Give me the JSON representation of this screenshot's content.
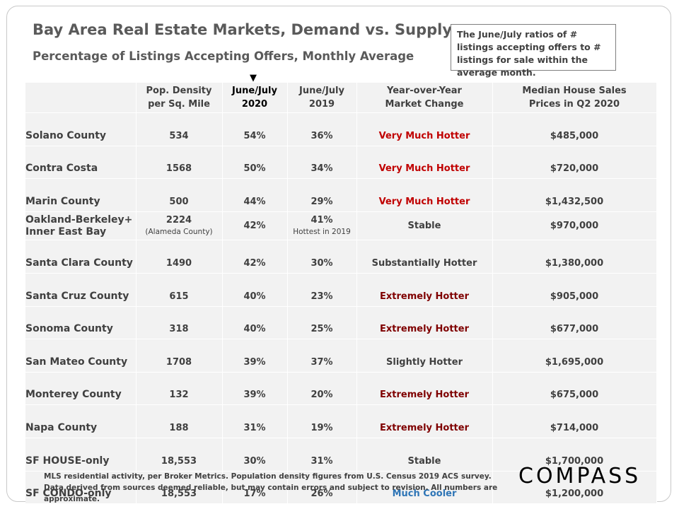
{
  "title": "Bay Area Real Estate Markets, Demand vs. Supply",
  "subtitle": "Percentage of Listings Accepting Offers, Monthly Average",
  "note": "The June/July ratios of # listings accepting offers to # listings for sale within the average month.",
  "arrow_glyph": "▼",
  "footer": "MLS residential activity, per Broker Metrics. Population density figures from U.S. Census 2019 ACS survey. Data derived from sources deemed reliable, but may contain errors and subject to revision. All numbers are approximate.",
  "logo": "COMPASS",
  "colors": {
    "very_much_hotter": "#c00000",
    "extremely_hotter": "#7f0000",
    "much_cooler": "#2e75b6",
    "neutral": "#404040"
  },
  "chart_data": {
    "type": "table",
    "columns": [
      {
        "line1": "",
        "line2": ""
      },
      {
        "line1": "Pop. Density",
        "line2": "per Sq. Mile"
      },
      {
        "line1": "June/July",
        "line2": "2020"
      },
      {
        "line1": "June/July",
        "line2": "2019"
      },
      {
        "line1": "Year-over-Year",
        "line2": "Market Change"
      },
      {
        "line1": "Median House Sales",
        "line2": "Prices in Q2 2020"
      }
    ],
    "rows": [
      {
        "market": "Solano County",
        "density": "534",
        "jj2020": "54%",
        "jj2019": "36%",
        "change": "Very Much Hotter",
        "change_level": "very_much_hotter",
        "price": "$485,000"
      },
      {
        "market": "Contra Costa",
        "density": "1568",
        "jj2020": "50%",
        "jj2019": "34%",
        "change": "Very Much Hotter",
        "change_level": "very_much_hotter",
        "price": "$720,000"
      },
      {
        "market": "Marin County",
        "density": "500",
        "jj2020": "44%",
        "jj2019": "29%",
        "change": "Very Much Hotter",
        "change_level": "very_much_hotter",
        "price": "$1,432,500"
      },
      {
        "market": "Oakland-Berkeley+",
        "market_line2": "Inner East Bay",
        "density": "2224",
        "density_note": "(Alameda County)",
        "jj2020": "42%",
        "jj2019": "41%",
        "jj2019_note": "Hottest in 2019",
        "change": "Stable",
        "change_level": "neutral",
        "price": "$970,000"
      },
      {
        "market": "Santa Clara County",
        "density": "1490",
        "jj2020": "42%",
        "jj2019": "30%",
        "change": "Substantially Hotter",
        "change_level": "neutral",
        "price": "$1,380,000"
      },
      {
        "market": "Santa Cruz County",
        "density": "615",
        "jj2020": "40%",
        "jj2019": "23%",
        "change": "Extremely Hotter",
        "change_level": "extremely_hotter",
        "price": "$905,000"
      },
      {
        "market": "Sonoma County",
        "density": "318",
        "jj2020": "40%",
        "jj2019": "25%",
        "change": "Extremely Hotter",
        "change_level": "extremely_hotter",
        "price": "$677,000"
      },
      {
        "market": "San Mateo County",
        "density": "1708",
        "jj2020": "39%",
        "jj2019": "37%",
        "change": "Slightly Hotter",
        "change_level": "neutral",
        "price": "$1,695,000"
      },
      {
        "market": "Monterey County",
        "density": "132",
        "jj2020": "39%",
        "jj2019": "20%",
        "change": "Extremely Hotter",
        "change_level": "extremely_hotter",
        "price": "$675,000"
      },
      {
        "market": "Napa County",
        "density": "188",
        "jj2020": "31%",
        "jj2019": "19%",
        "change": "Extremely Hotter",
        "change_level": "extremely_hotter",
        "price": "$714,000"
      },
      {
        "market": "SF HOUSE-only",
        "density": "18,553",
        "jj2020": "30%",
        "jj2019": "31%",
        "change": "Stable",
        "change_level": "neutral",
        "price": "$1,700,000"
      },
      {
        "market": "SF CONDO-only",
        "density": "18,553",
        "jj2020": "17%",
        "jj2019": "26%",
        "change": "Much Cooler",
        "change_level": "much_cooler",
        "price": "$1,200,000"
      }
    ]
  }
}
